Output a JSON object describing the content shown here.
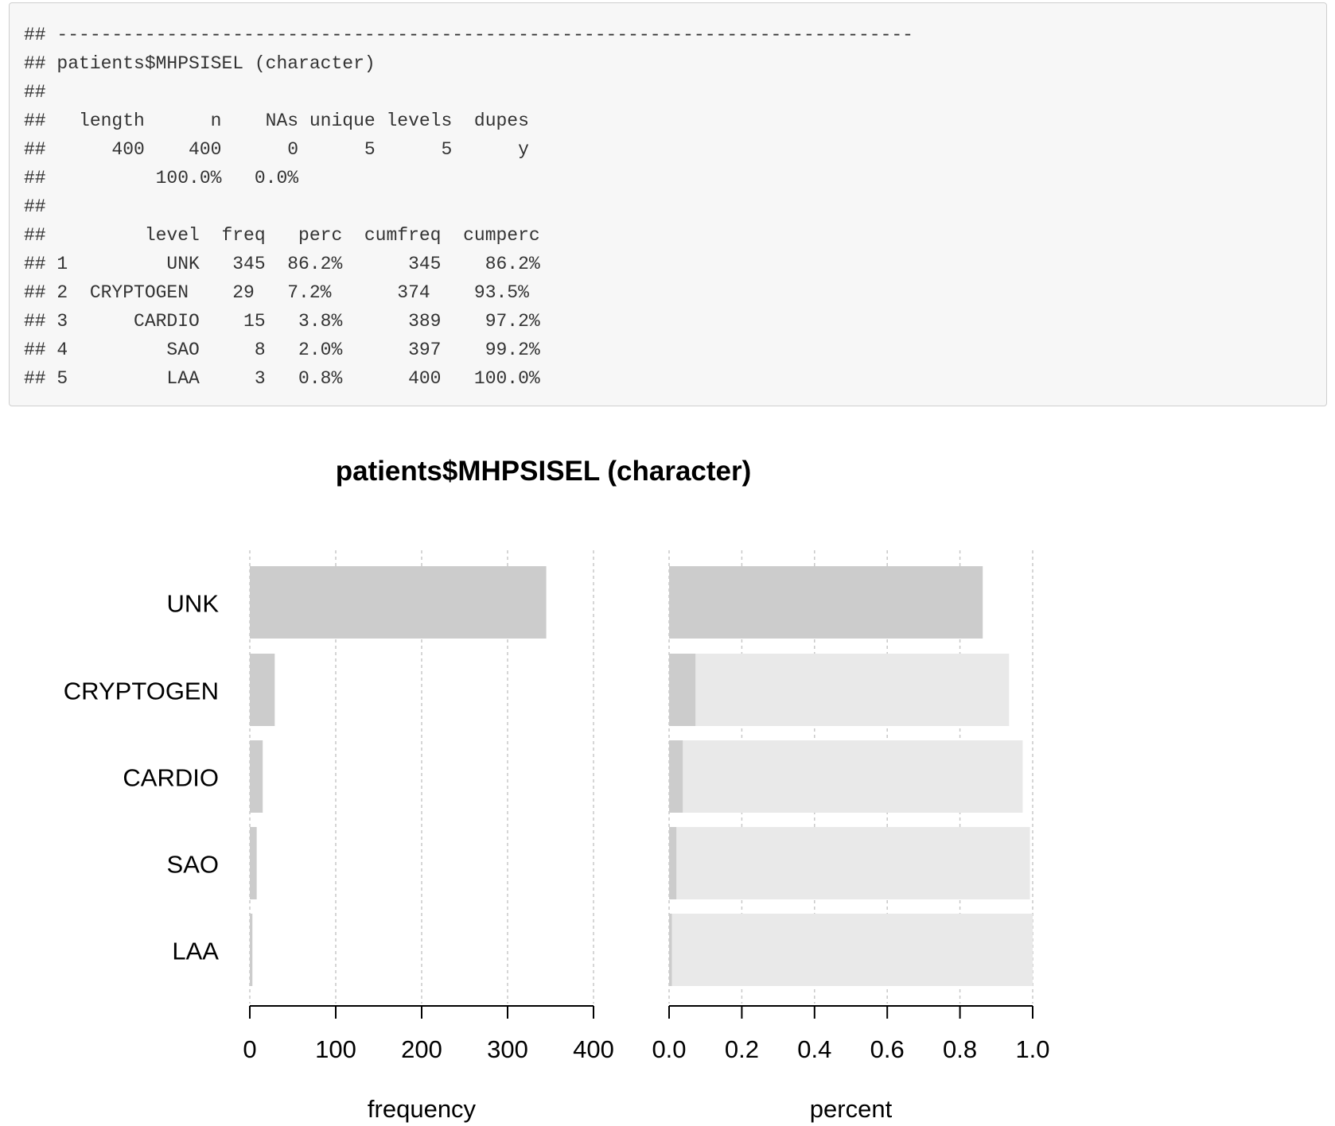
{
  "console": {
    "lines": [
      "## ------------------------------------------------------------------------------",
      "## patients$MHPSISEL (character)",
      "##",
      "##   length      n    NAs unique levels  dupes",
      "##      400    400      0      5      5      y",
      "##          100.0%   0.0%",
      "##",
      "##         level  freq   perc  cumfreq  cumperc",
      "## 1         UNK   345  86.2%      345    86.2%",
      "## 2  CRYPTOGEN    29   7.2%      374    93.5%",
      "## 3      CARDIO    15   3.8%      389    97.2%",
      "## 4         SAO     8   2.0%      397    99.2%",
      "## 5         LAA     3   0.8%      400   100.0%"
    ]
  },
  "chart_data": [
    {
      "type": "bar",
      "orientation": "horizontal",
      "title": "patients$MHPSISEL (character)",
      "categories": [
        "UNK",
        "CRYPTOGEN",
        "CARDIO",
        "SAO",
        "LAA"
      ],
      "values": [
        345,
        29,
        15,
        8,
        3
      ],
      "xlabel": "frequency",
      "ylabel": "",
      "xlim": [
        0,
        400
      ],
      "xticks": [
        "0",
        "100",
        "200",
        "300",
        "400"
      ],
      "grid": "vertical dotted",
      "colors": {
        "bar": "#cccccc"
      }
    },
    {
      "type": "bar",
      "orientation": "horizontal",
      "categories": [
        "UNK",
        "CRYPTOGEN",
        "CARDIO",
        "SAO",
        "LAA"
      ],
      "series": [
        {
          "values": [
            0.8625,
            0.935,
            0.9725,
            0.9925,
            1.0
          ],
          "color": "#e9e9e9"
        },
        {
          "values": [
            0.8625,
            0.0725,
            0.0375,
            0.02,
            0.0075
          ],
          "color": "#cccccc"
        }
      ],
      "xlabel": "percent",
      "xlim": [
        0,
        1
      ],
      "xticks": [
        "0.0",
        "0.2",
        "0.4",
        "0.6",
        "0.8",
        "1.0"
      ],
      "grid": "vertical dotted"
    }
  ]
}
